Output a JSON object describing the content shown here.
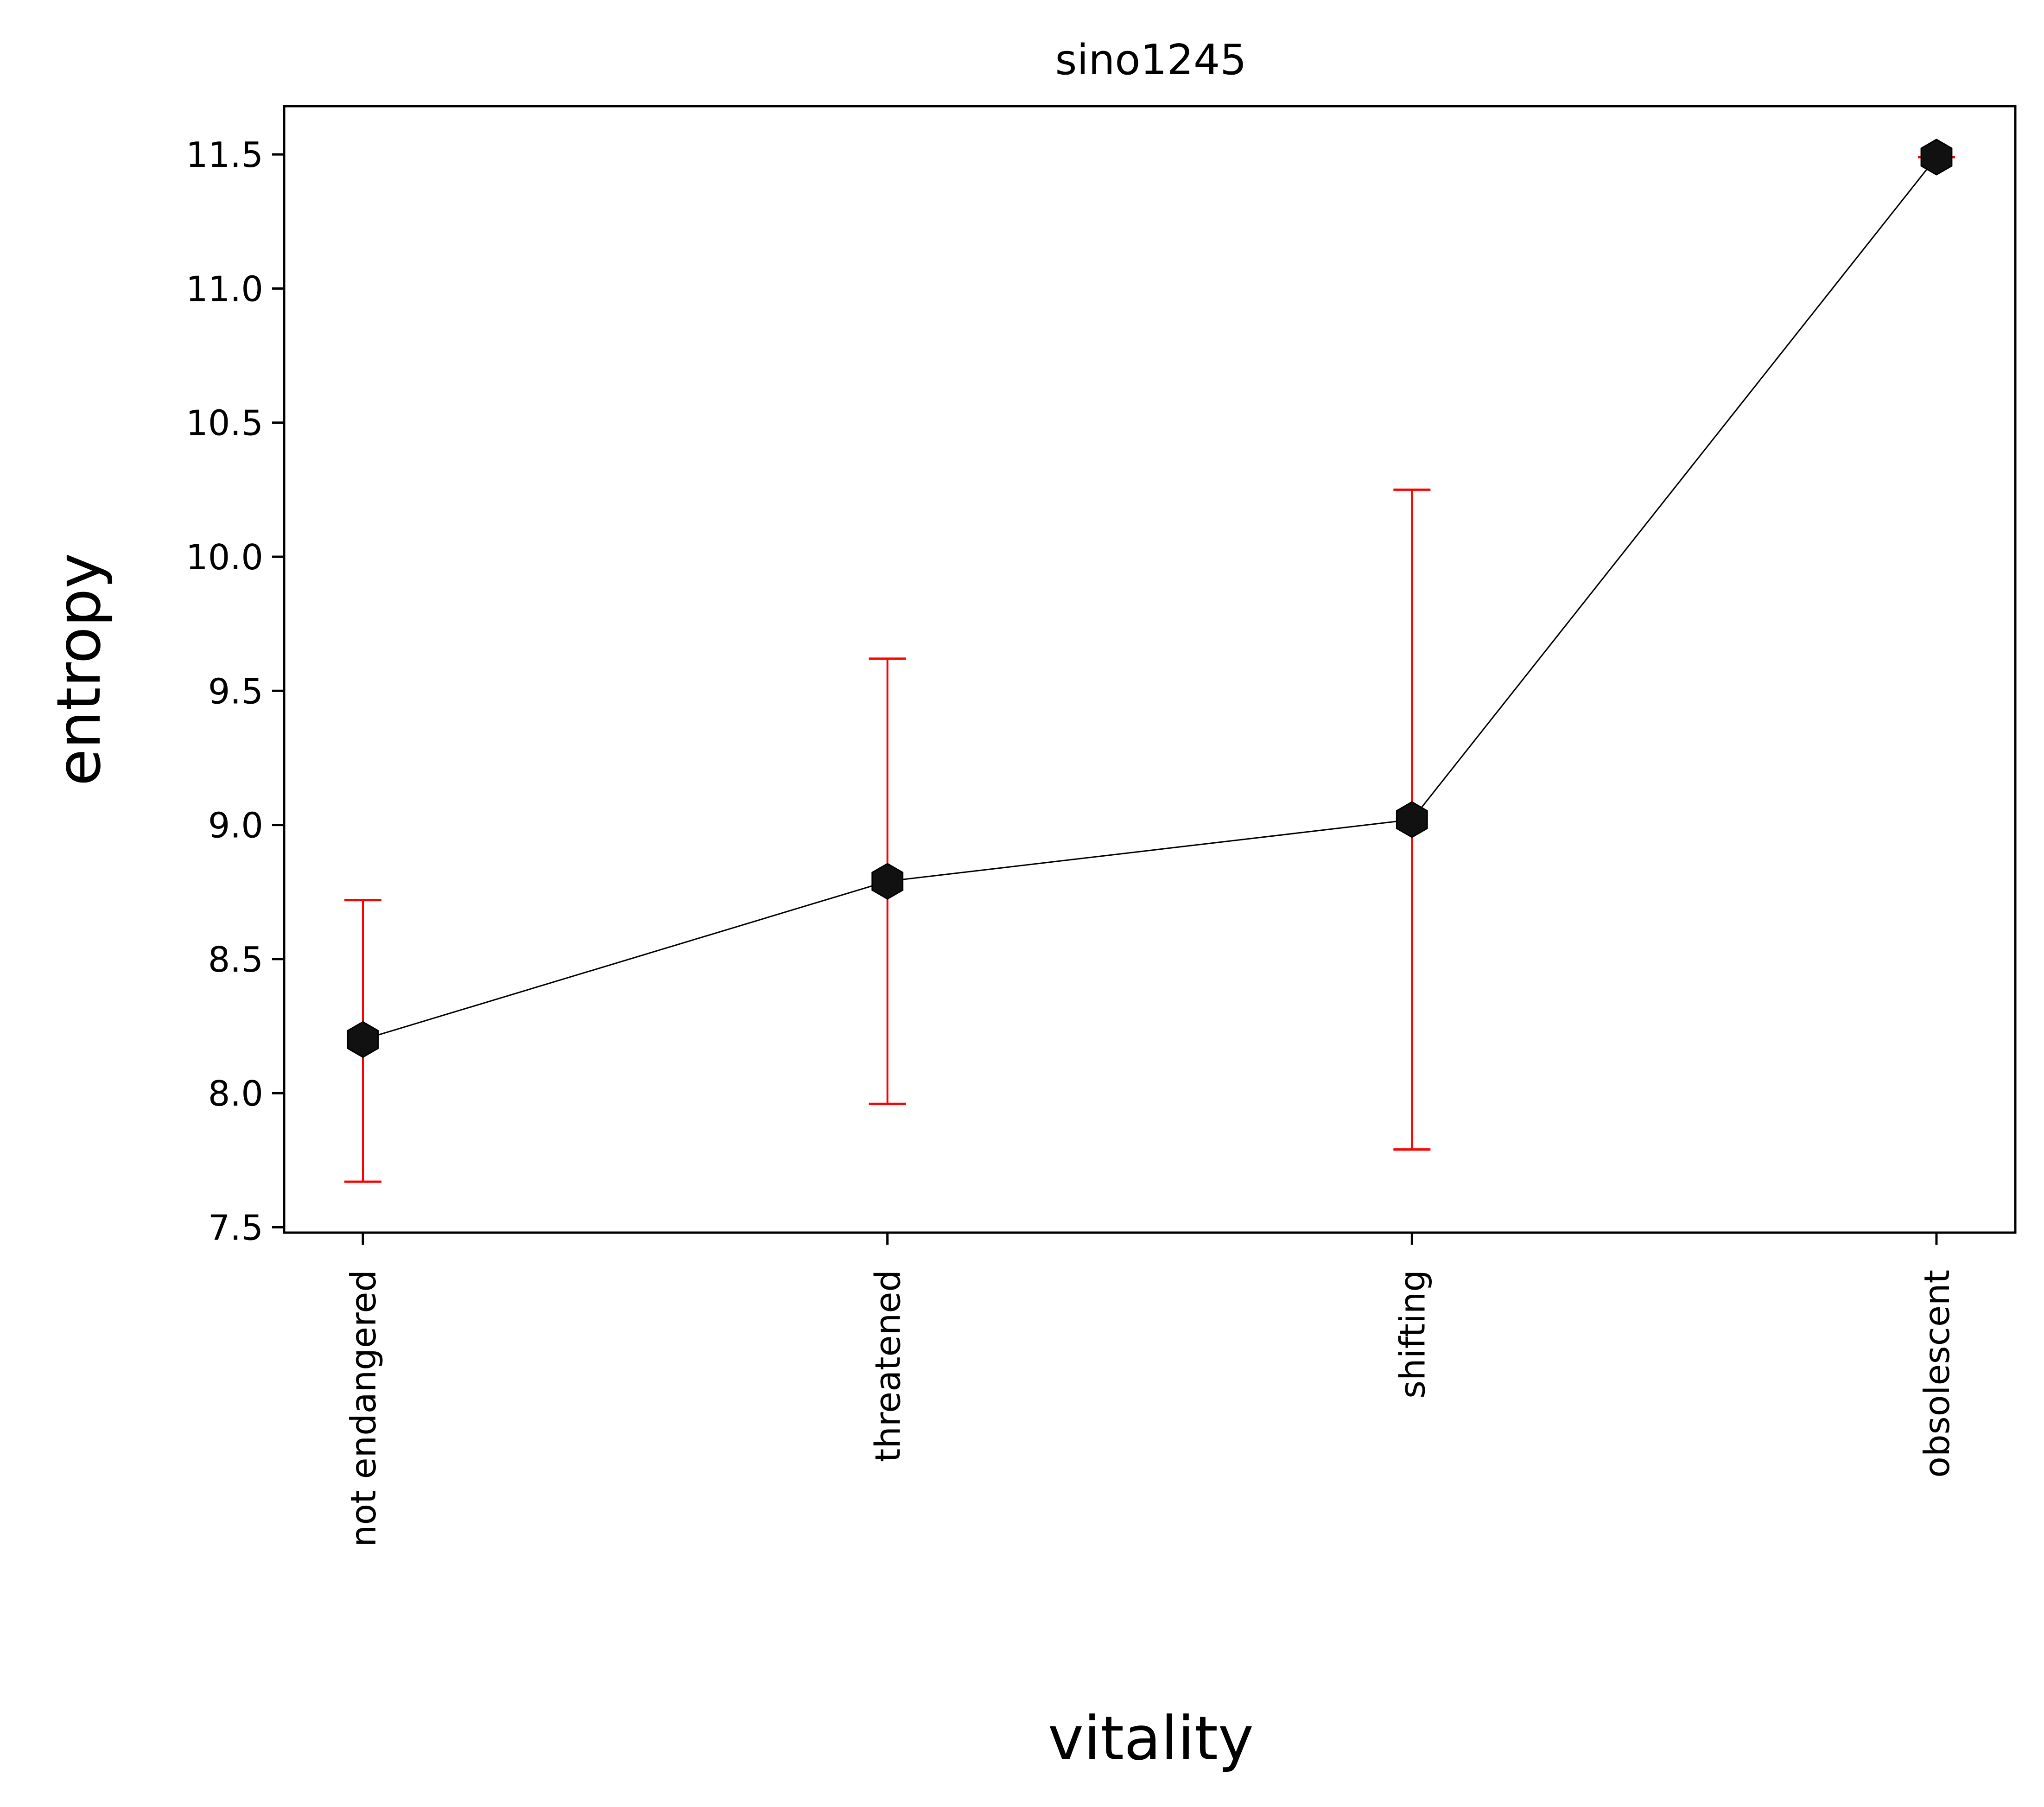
{
  "chart_data": {
    "type": "line",
    "title": "sino1245",
    "xlabel": "vitality",
    "ylabel": "entropy",
    "categories": [
      "not endangered",
      "threatened",
      "shifting",
      "obsolescent"
    ],
    "series": [
      {
        "values": [
          8.2,
          8.79,
          9.02,
          11.49
        ],
        "error_low": [
          7.67,
          7.96,
          7.79,
          11.49
        ],
        "error_high": [
          8.72,
          9.62,
          10.25,
          11.49
        ]
      }
    ],
    "ylim": [
      7.48,
      11.68
    ],
    "yticks": [
      "7.5",
      "8.0",
      "8.5",
      "9.0",
      "9.5",
      "10.0",
      "10.5",
      "11.0",
      "11.5"
    ],
    "ytick_values": [
      7.5,
      8.0,
      8.5,
      9.0,
      9.5,
      10.0,
      10.5,
      11.0,
      11.5
    ],
    "grid": false,
    "colors": {
      "line": "#000000",
      "marker": "#111111",
      "errorbar": "#ff0000"
    }
  }
}
